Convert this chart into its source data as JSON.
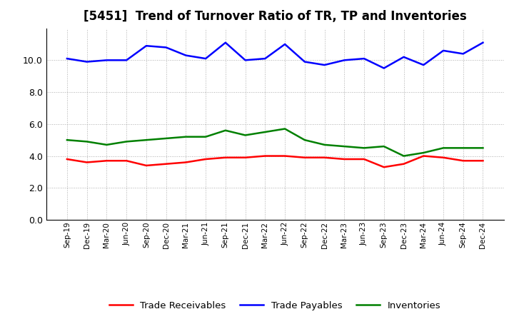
{
  "title": "[5451]  Trend of Turnover Ratio of TR, TP and Inventories",
  "x_labels": [
    "Sep-19",
    "Dec-19",
    "Mar-20",
    "Jun-20",
    "Sep-20",
    "Dec-20",
    "Mar-21",
    "Jun-21",
    "Sep-21",
    "Dec-21",
    "Mar-22",
    "Jun-22",
    "Sep-22",
    "Dec-22",
    "Mar-23",
    "Jun-23",
    "Sep-23",
    "Dec-23",
    "Mar-24",
    "Jun-24",
    "Sep-24",
    "Dec-24"
  ],
  "trade_receivables": [
    3.8,
    3.6,
    3.7,
    3.7,
    3.4,
    3.5,
    3.6,
    3.8,
    3.9,
    3.9,
    4.0,
    4.0,
    3.9,
    3.9,
    3.8,
    3.8,
    3.3,
    3.5,
    4.0,
    3.9,
    3.7,
    3.7
  ],
  "trade_payables": [
    10.1,
    9.9,
    10.0,
    10.0,
    10.9,
    10.8,
    10.3,
    10.1,
    11.1,
    10.0,
    10.1,
    11.0,
    9.9,
    9.7,
    10.0,
    10.1,
    9.5,
    10.2,
    9.7,
    10.6,
    10.4,
    11.1
  ],
  "inventories": [
    5.0,
    4.9,
    4.7,
    4.9,
    5.0,
    5.1,
    5.2,
    5.2,
    5.6,
    5.3,
    5.5,
    5.7,
    5.0,
    4.7,
    4.6,
    4.5,
    4.6,
    4.0,
    4.2,
    4.5,
    4.5,
    4.5
  ],
  "ylim": [
    0,
    12
  ],
  "yticks": [
    0.0,
    2.0,
    4.0,
    6.0,
    8.0,
    10.0
  ],
  "color_tr": "#ff0000",
  "color_tp": "#0000ff",
  "color_inv": "#008000",
  "bg_color": "#ffffff",
  "grid_color": "#999999",
  "title_fontsize": 12,
  "legend_labels": [
    "Trade Receivables",
    "Trade Payables",
    "Inventories"
  ]
}
